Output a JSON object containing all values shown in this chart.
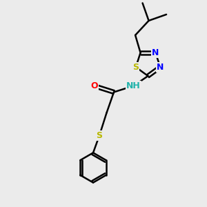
{
  "background_color": "#ebebeb",
  "bond_color": "#000000",
  "bond_width": 1.8,
  "atom_colors": {
    "C": "#000000",
    "H": "#20b2aa",
    "N": "#0000ff",
    "O": "#ff0000",
    "S": "#b8b800"
  },
  "font_size": 9,
  "fig_width": 3.0,
  "fig_height": 3.0
}
